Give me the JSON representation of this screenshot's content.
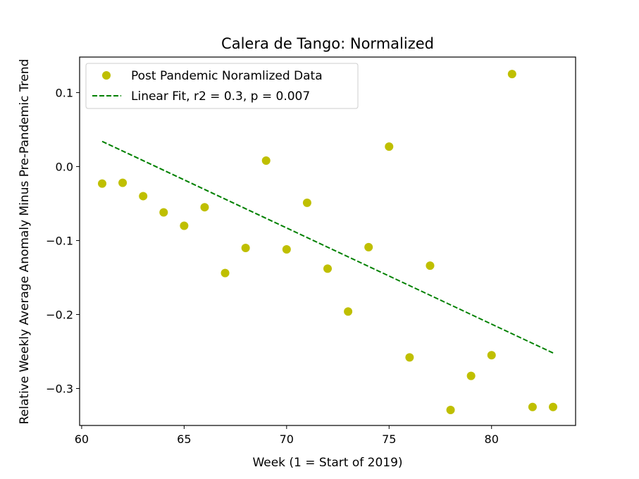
{
  "chart_data": {
    "type": "scatter",
    "title": "Calera de Tango: Normalized",
    "xlabel": "Week (1 = Start of 2019)",
    "ylabel": "Relative Weekly Average Anomaly Minus Pre-Pandemic Trend",
    "xlim": [
      59.9,
      84.1
    ],
    "ylim": [
      -0.35,
      0.148
    ],
    "xticks": [
      60,
      65,
      70,
      75,
      80
    ],
    "xtick_labels": [
      "60",
      "65",
      "70",
      "75",
      "80"
    ],
    "yticks": [
      -0.3,
      -0.2,
      -0.1,
      0.0,
      0.1
    ],
    "ytick_labels": [
      "−0.3",
      "−0.2",
      "−0.1",
      "0.0",
      "0.1"
    ],
    "grid": false,
    "legend_position": "top-left",
    "series": [
      {
        "name": "Post Pandemic Noramlized Data",
        "kind": "points",
        "color": "#bfbf00",
        "x": [
          61,
          62,
          63,
          64,
          65,
          66,
          67,
          68,
          69,
          70,
          71,
          72,
          73,
          74,
          75,
          76,
          77,
          78,
          79,
          80,
          81,
          82,
          83
        ],
        "y": [
          -0.023,
          -0.022,
          -0.04,
          -0.062,
          -0.08,
          -0.055,
          -0.144,
          -0.11,
          0.008,
          -0.112,
          -0.049,
          -0.138,
          -0.196,
          -0.109,
          0.027,
          -0.258,
          -0.134,
          -0.329,
          -0.283,
          -0.255,
          0.125,
          -0.325,
          -0.325
        ]
      },
      {
        "name": "Linear Fit, r2 = 0.3, p = 0.007",
        "kind": "line",
        "color": "#008000",
        "dash": "dashed",
        "x": [
          61,
          83
        ],
        "y": [
          0.034,
          -0.252
        ]
      }
    ]
  }
}
